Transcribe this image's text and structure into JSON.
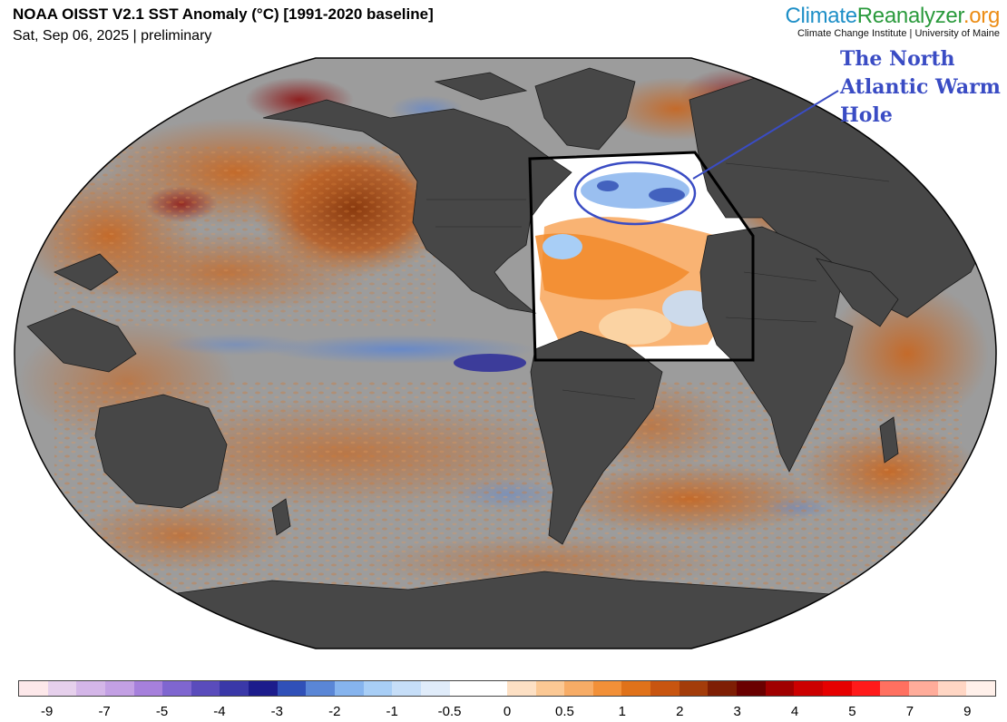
{
  "header": {
    "title": "NOAA OISST V2.1 SST Anomaly (°C) [1991-2020 baseline]",
    "subtitle": "Sat, Sep 06, 2025 | preliminary"
  },
  "brand": {
    "name_part1": "Climate",
    "name_part2": "Reanalyzer",
    "name_part3": ".org",
    "subline": "Climate Change Institute | University of Maine"
  },
  "annotation": {
    "line1": "The North",
    "line2": "Atlantic Warm",
    "line3": "Hole",
    "color": "#3a4cc4"
  },
  "map": {
    "projection": "Robinson",
    "land_color": "#4a4a4a",
    "ocean_neutral_color": "#9a9a9a",
    "highlight_box_region": "North Atlantic"
  },
  "legend": {
    "colors": [
      "#fde8ea",
      "#e6d0ec",
      "#d4b6e8",
      "#c3a0e4",
      "#a680dc",
      "#7f66d0",
      "#5a4cbc",
      "#3a38a8",
      "#1c1c8c",
      "#3050b8",
      "#5a86d6",
      "#86b4ee",
      "#a8cef6",
      "#c6def8",
      "#e0ecfa",
      "#ffffff",
      "#ffffff",
      "#fde0c4",
      "#fbc894",
      "#f7ac66",
      "#f29038",
      "#e0721a",
      "#c85510",
      "#a33c0a",
      "#7e1e04",
      "#6a0000",
      "#a00000",
      "#cc0000",
      "#e60000",
      "#ff1a1a",
      "#ff7060",
      "#ffac9a",
      "#ffd6c4",
      "#fff0ea"
    ],
    "ticks": [
      "-9",
      "-7",
      "-5",
      "-4",
      "-3",
      "-2",
      "-1",
      "-0.5",
      "0",
      "0.5",
      "1",
      "2",
      "3",
      "4",
      "5",
      "7",
      "9"
    ]
  }
}
